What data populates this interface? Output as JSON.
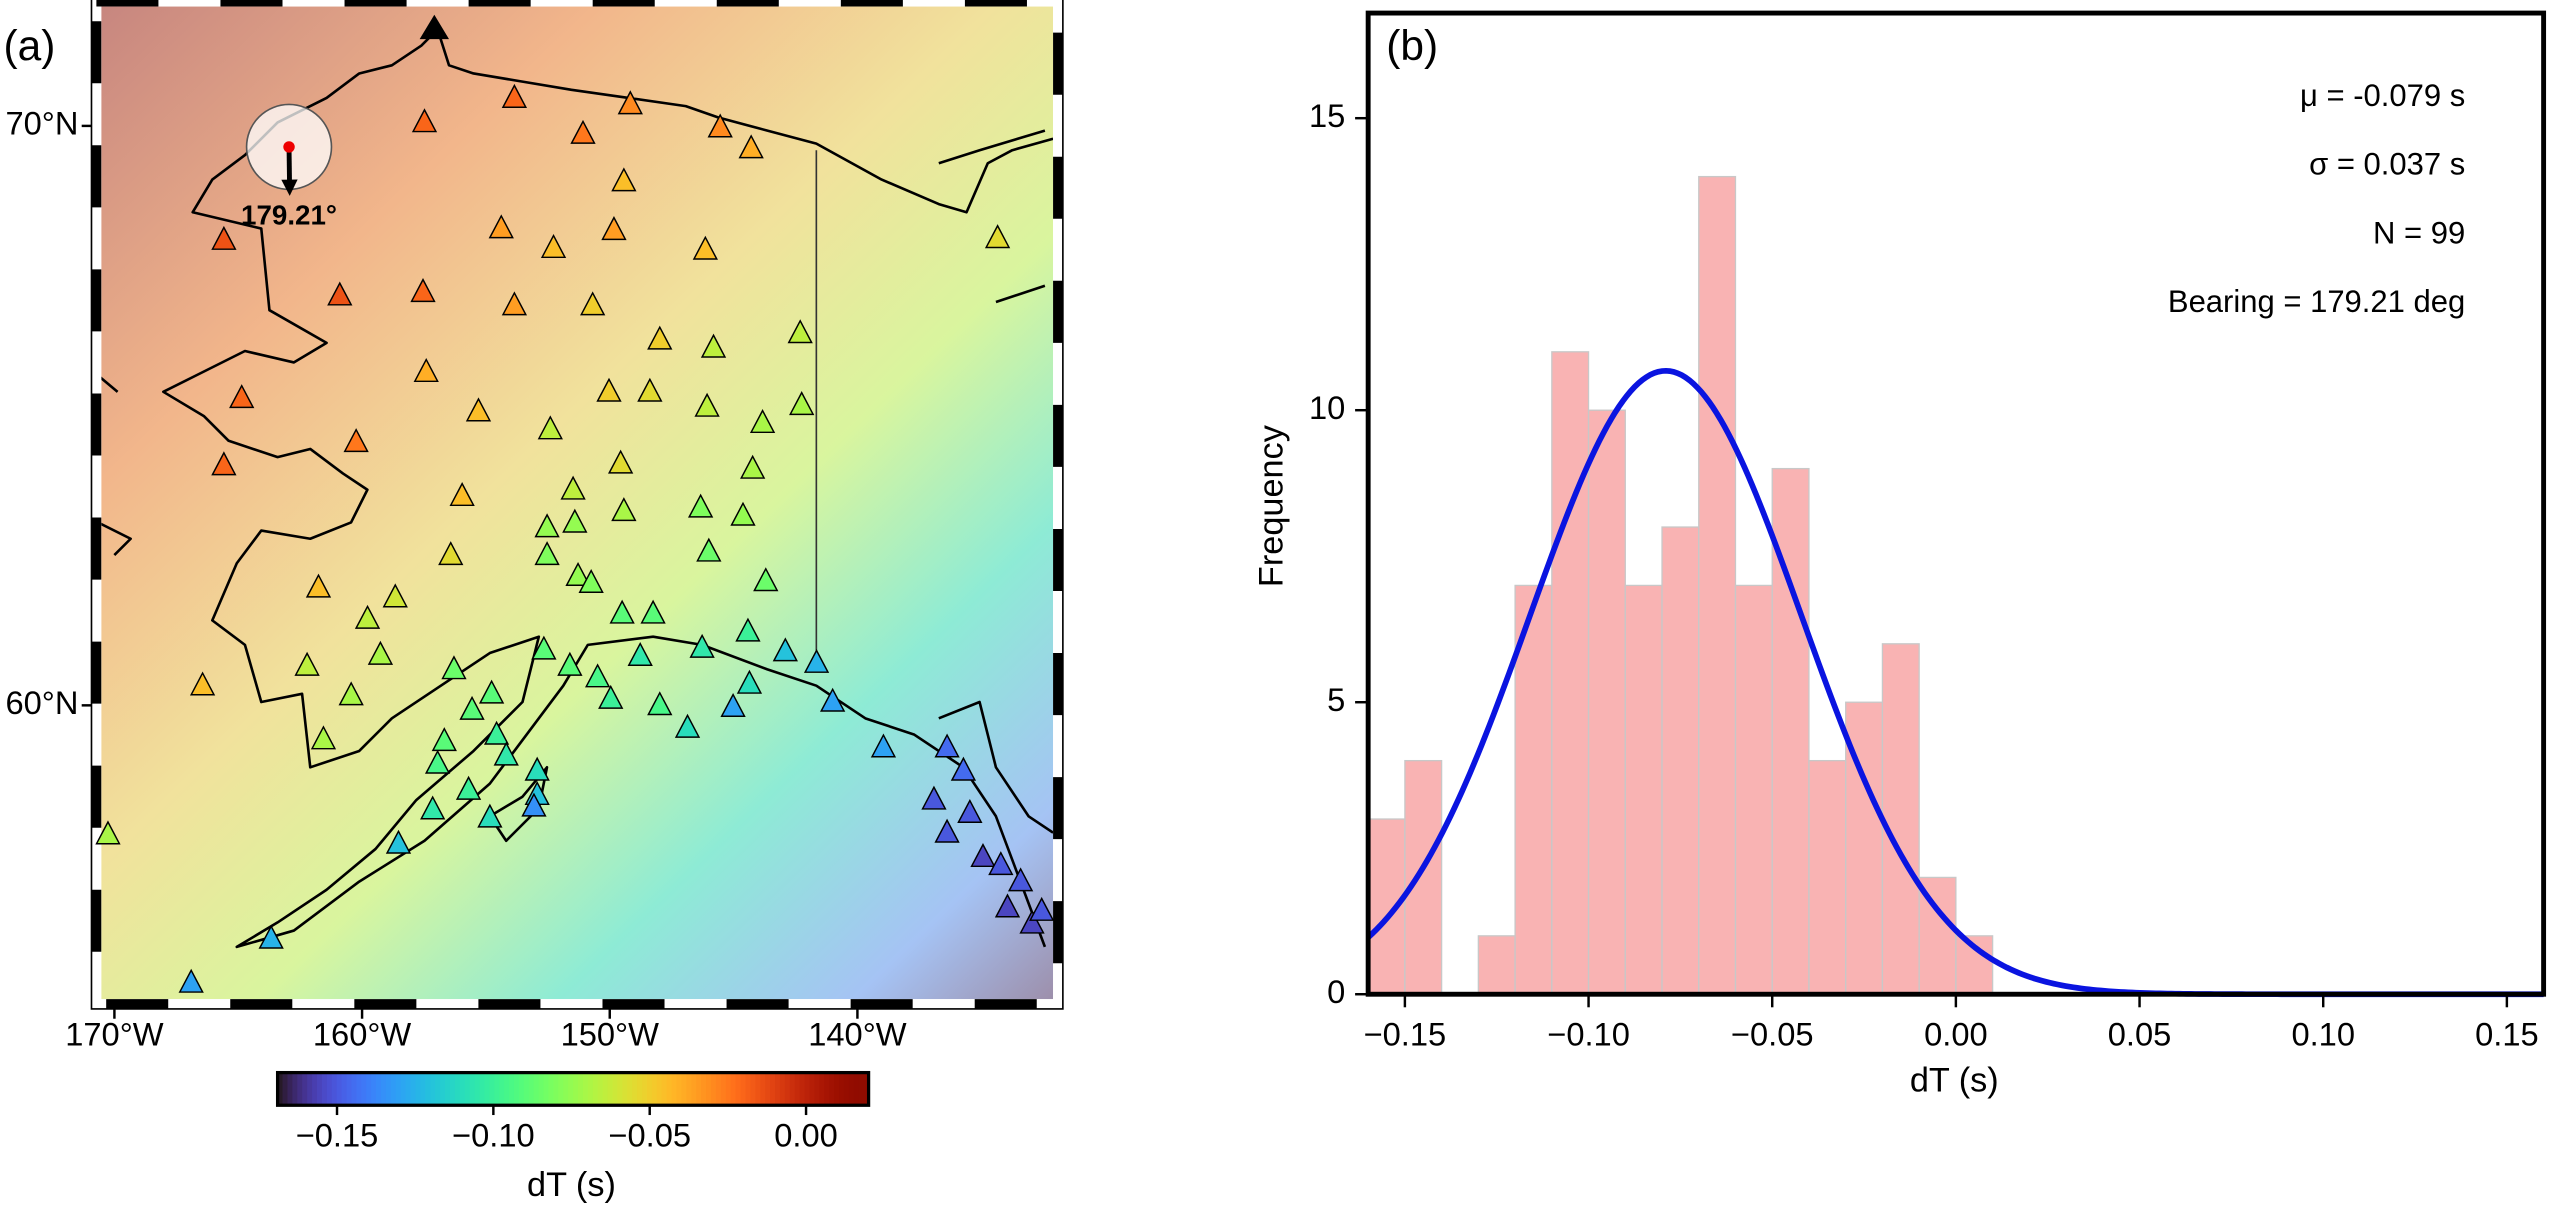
{
  "chart_data": [
    {
      "type": "map",
      "panel_label": "(a)",
      "xlim": [
        -170.53,
        -132.1
      ],
      "ylim": [
        54.93,
        72.06
      ],
      "xticks": [
        {
          "value": -170,
          "label": "170°W"
        },
        {
          "value": -160,
          "label": "160°W"
        },
        {
          "value": -150,
          "label": "150°W"
        },
        {
          "value": -140,
          "label": "140°W"
        }
      ],
      "yticks": [
        {
          "value": 70,
          "label": "70°N"
        },
        {
          "value": 60,
          "label": "60°N"
        }
      ],
      "bearing": 179.21,
      "bearing_label": "179.21°",
      "stations": {
        "lon": [
          -157.48,
          -153.85,
          -151.08,
          -149.17,
          -145.54,
          -144.29,
          -149.43,
          -165.58,
          -154.38,
          -152.27,
          -149.83,
          -146.14,
          -134.34,
          -160.9,
          -157.54,
          -153.85,
          -150.69,
          -147.98,
          -145.81,
          -142.31,
          -164.86,
          -157.41,
          -150.03,
          -148.38,
          -146.07,
          -142.25,
          -160.24,
          -155.3,
          -152.4,
          -143.83,
          -165.58,
          -149.56,
          -144.23,
          -155.96,
          -151.48,
          -146.33,
          -144.62,
          -152.53,
          -151.41,
          -149.43,
          -156.42,
          -152.53,
          -146.0,
          -161.76,
          -158.66,
          -151.28,
          -150.75,
          -143.7,
          -159.78,
          -149.5,
          -148.25,
          -144.42,
          -166.44,
          -162.22,
          -159.26,
          -156.29,
          -152.66,
          -151.61,
          -150.49,
          -148.77,
          -146.27,
          -142.91,
          -141.65,
          -160.44,
          -154.77,
          -155.56,
          -149.96,
          -147.98,
          -144.36,
          -145.02,
          -141.0,
          -161.56,
          -156.68,
          -154.57,
          -146.86,
          -154.18,
          -138.95,
          -136.38,
          -156.95,
          -155.7,
          -152.93,
          -152.93,
          -135.72,
          -157.15,
          -154.84,
          -153.06,
          -136.91,
          -135.46,
          -158.53,
          -170.26,
          -136.38,
          -134.93,
          -133.41,
          -133.94,
          -163.67,
          -166.9,
          -132.95,
          -132.56,
          -134.21
        ],
        "lat": [
          70.06,
          70.48,
          69.86,
          70.37,
          69.97,
          69.61,
          69.04,
          68.03,
          68.23,
          67.89,
          68.2,
          67.86,
          68.06,
          67.07,
          67.13,
          66.9,
          66.9,
          66.31,
          66.17,
          66.42,
          65.3,
          65.75,
          65.41,
          65.41,
          65.15,
          65.18,
          64.54,
          65.07,
          64.76,
          64.87,
          64.14,
          64.17,
          64.08,
          63.61,
          63.72,
          63.41,
          63.27,
          63.07,
          63.15,
          63.35,
          62.59,
          62.59,
          62.65,
          62.03,
          61.86,
          62.23,
          62.11,
          62.14,
          61.49,
          61.58,
          61.58,
          61.27,
          60.34,
          60.68,
          60.87,
          60.62,
          60.96,
          60.68,
          60.48,
          60.85,
          60.99,
          60.93,
          60.73,
          60.17,
          60.2,
          59.92,
          60.11,
          60.0,
          60.37,
          59.97,
          60.06,
          59.41,
          59.38,
          59.49,
          59.61,
          59.13,
          59.27,
          59.27,
          58.99,
          58.54,
          58.87,
          58.45,
          58.87,
          58.2,
          58.06,
          58.25,
          58.37,
          58.14,
          57.61,
          57.77,
          57.8,
          57.38,
          56.96,
          56.51,
          55.97,
          55.21,
          56.23,
          56.45,
          57.24
        ],
        "values": [
          -0.02,
          -0.02,
          -0.025,
          -0.03,
          -0.03,
          -0.04,
          -0.045,
          -0.015,
          -0.035,
          -0.045,
          -0.035,
          -0.045,
          -0.055,
          -0.015,
          -0.02,
          -0.035,
          -0.05,
          -0.05,
          -0.065,
          -0.065,
          -0.02,
          -0.04,
          -0.05,
          -0.055,
          -0.065,
          -0.07,
          -0.025,
          -0.045,
          -0.065,
          -0.07,
          -0.02,
          -0.055,
          -0.07,
          -0.045,
          -0.065,
          -0.08,
          -0.075,
          -0.075,
          -0.075,
          -0.07,
          -0.055,
          -0.08,
          -0.085,
          -0.045,
          -0.06,
          -0.075,
          -0.08,
          -0.085,
          -0.065,
          -0.09,
          -0.09,
          -0.1,
          -0.045,
          -0.065,
          -0.07,
          -0.085,
          -0.09,
          -0.09,
          -0.095,
          -0.105,
          -0.105,
          -0.12,
          -0.125,
          -0.07,
          -0.09,
          -0.09,
          -0.1,
          -0.095,
          -0.11,
          -0.13,
          -0.13,
          -0.07,
          -0.09,
          -0.1,
          -0.11,
          -0.105,
          -0.13,
          -0.145,
          -0.095,
          -0.1,
          -0.11,
          -0.12,
          -0.145,
          -0.105,
          -0.11,
          -0.135,
          -0.15,
          -0.15,
          -0.12,
          -0.07,
          -0.15,
          -0.155,
          -0.15,
          -0.155,
          -0.125,
          -0.13,
          -0.155,
          -0.15,
          -0.15
        ]
      },
      "colorbar": {
        "label": "dT (s)",
        "colormap": "turbo",
        "clim": [
          -0.169,
          0.02
        ],
        "ticks": [
          {
            "value": -0.15,
            "label": "−0.15"
          },
          {
            "value": -0.1,
            "label": "−0.10"
          },
          {
            "value": -0.05,
            "label": "−0.05"
          },
          {
            "value": 0,
            "label": "0.00"
          }
        ]
      }
    },
    {
      "type": "histogram",
      "panel_label": "(b)",
      "bins": [
        -0.16,
        -0.15,
        -0.14,
        -0.13,
        -0.12,
        -0.11,
        -0.1,
        -0.09,
        -0.08,
        -0.07,
        -0.06,
        -0.05,
        -0.04,
        -0.03,
        -0.02,
        -0.01,
        0,
        0.01,
        0.02,
        0.03,
        0.04,
        0.05,
        0.06,
        0.07,
        0.08,
        0.09,
        0.1,
        0.11,
        0.12,
        0.13,
        0.14,
        0.15,
        0.16
      ],
      "values": [
        3,
        4,
        0,
        1,
        7,
        11,
        10,
        7,
        8,
        14,
        7,
        9,
        4,
        5,
        6,
        2,
        1,
        0,
        0,
        0,
        0,
        0,
        0,
        0,
        0,
        0,
        0,
        0,
        0,
        0,
        0,
        0
      ],
      "color": "#f9b3b3",
      "xlim": [
        -0.16,
        0.16
      ],
      "ylim": [
        0,
        16.8
      ],
      "xticks": [
        {
          "value": -0.15,
          "label": "−0.15"
        },
        {
          "value": -0.1,
          "label": "−0.10"
        },
        {
          "value": -0.05,
          "label": "−0.05"
        },
        {
          "value": 0,
          "label": "0.00"
        },
        0.05,
        {
          "value": 0.1,
          "label": "0.10"
        },
        0.15
      ],
      "yticks": [
        0,
        5,
        10,
        15
      ],
      "xlabel": "dT (s)",
      "ylabel": "Frequency",
      "annotations": [
        "μ = -0.079 s",
        "σ = 0.037 s",
        "N = 99",
        "Bearing = 179.21 deg"
      ],
      "fit": {
        "mu": -0.079,
        "sigma": 0.037,
        "n": 99,
        "color": "#0a14e0"
      }
    }
  ]
}
